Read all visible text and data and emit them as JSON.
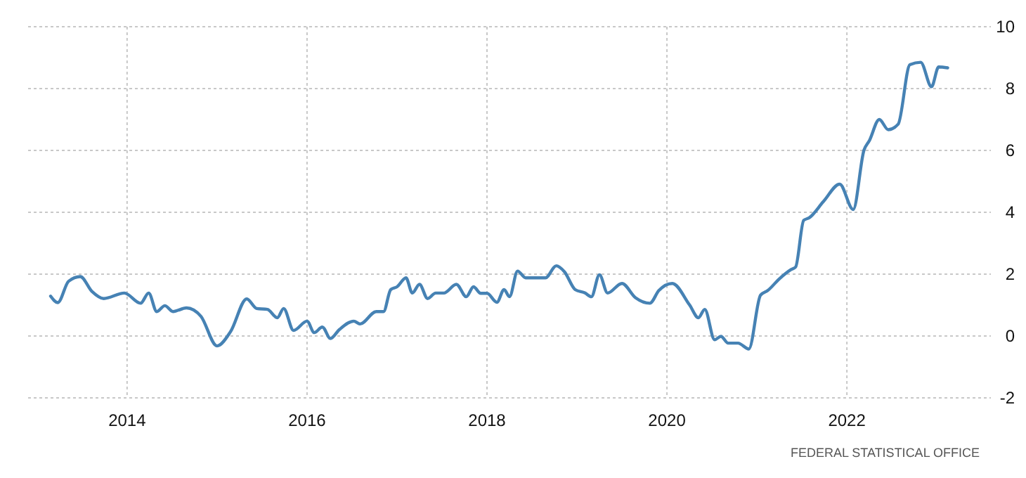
{
  "chart_data": {
    "type": "line",
    "x": [
      2013.15,
      2013.23,
      2013.35,
      2013.48,
      2013.61,
      2013.74,
      2013.97,
      2014.15,
      2014.24,
      2014.33,
      2014.42,
      2014.51,
      2014.66,
      2014.82,
      2015.0,
      2015.15,
      2015.33,
      2015.44,
      2015.56,
      2015.67,
      2015.74,
      2015.85,
      2016.0,
      2016.08,
      2016.17,
      2016.26,
      2016.36,
      2016.52,
      2016.59,
      2016.77,
      2016.85,
      2016.93,
      2017.0,
      2017.1,
      2017.17,
      2017.25,
      2017.34,
      2017.43,
      2017.52,
      2017.66,
      2017.77,
      2017.85,
      2017.93,
      2018.0,
      2018.11,
      2018.19,
      2018.25,
      2018.34,
      2018.43,
      2018.65,
      2018.77,
      2018.86,
      2018.98,
      2019.09,
      2019.16,
      2019.25,
      2019.34,
      2019.5,
      2019.65,
      2019.81,
      2019.91,
      2020.06,
      2020.25,
      2020.35,
      2020.42,
      2020.53,
      2020.6,
      2020.68,
      2020.79,
      2020.91,
      2021.04,
      2021.12,
      2021.25,
      2021.38,
      2021.43,
      2021.52,
      2021.58,
      2021.74,
      2021.92,
      2022.07,
      2022.19,
      2022.25,
      2022.36,
      2022.46,
      2022.57,
      2022.7,
      2022.82,
      2022.94,
      2023.02,
      2023.12
    ],
    "series": [
      {
        "color": "#4682b4",
        "values": [
          1.29,
          1.08,
          1.77,
          1.92,
          1.44,
          1.21,
          1.39,
          1.06,
          1.39,
          0.79,
          0.98,
          0.79,
          0.91,
          0.64,
          -0.32,
          0.14,
          1.2,
          0.89,
          0.86,
          0.59,
          0.89,
          0.18,
          0.48,
          0.11,
          0.29,
          -0.08,
          0.21,
          0.48,
          0.39,
          0.79,
          0.79,
          1.5,
          1.59,
          1.88,
          1.39,
          1.67,
          1.21,
          1.39,
          1.39,
          1.67,
          1.27,
          1.59,
          1.38,
          1.38,
          1.09,
          1.5,
          1.27,
          2.1,
          1.88,
          1.88,
          2.27,
          2.08,
          1.5,
          1.39,
          1.27,
          1.98,
          1.39,
          1.7,
          1.24,
          1.06,
          1.47,
          1.7,
          1.01,
          0.59,
          0.86,
          -0.12,
          -0.01,
          -0.23,
          -0.23,
          -0.42,
          1.32,
          1.47,
          1.85,
          2.15,
          2.23,
          3.74,
          3.82,
          4.35,
          4.91,
          4.09,
          6.01,
          6.32,
          7.0,
          6.67,
          6.85,
          8.77,
          8.85,
          8.06,
          8.7,
          8.67
        ]
      }
    ],
    "xlim": [
      2012.9,
      2023.6
    ],
    "xticks": [
      2014,
      2016,
      2018,
      2020,
      2022
    ],
    "ylim": [
      -2,
      10
    ],
    "yticks": [
      -2,
      0,
      2,
      4,
      6,
      8,
      10
    ],
    "grid": true,
    "line_style": "solid",
    "marker": "none",
    "annotations": [
      "FEDERAL STATISTICAL OFFICE"
    ]
  }
}
